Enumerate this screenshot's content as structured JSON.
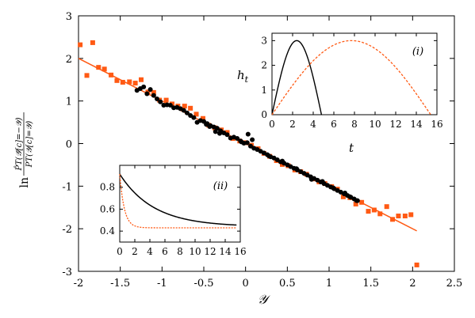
{
  "chart_data": [
    {
      "type": "scatter",
      "panel": "main",
      "xlabel": "𝒴",
      "ylabel_parts": {
        "prefix": "ln",
        "numerator": "P̂T(𝒴̂[c]=−𝒴)",
        "denominator": "PT(𝒴[c]=𝒴)"
      },
      "xlim": [
        -2,
        2.5
      ],
      "ylim": [
        -3,
        3
      ],
      "xticks": [
        "-2",
        "-1.5",
        "-1",
        "-0.5",
        "0",
        "0.5",
        "1",
        "1.5",
        "2",
        "2.5"
      ],
      "yticks": [
        "-3",
        "-2",
        "-1",
        "0",
        "1",
        "2",
        "3"
      ],
      "grid": false,
      "colors": {
        "orange": "#ff5a14",
        "black": "#000000"
      },
      "fit_line": {
        "x": [
          -2.0,
          2.05
        ],
        "y": [
          2.0,
          -2.05
        ]
      },
      "series": [
        {
          "marker": "square",
          "color": "#ff5a14",
          "points": [
            [
              -1.98,
              2.32
            ],
            [
              -1.9,
              1.6
            ],
            [
              -1.83,
              2.37
            ],
            [
              -1.76,
              1.79
            ],
            [
              -1.69,
              1.75
            ],
            [
              -1.61,
              1.61
            ],
            [
              -1.54,
              1.48
            ],
            [
              -1.47,
              1.44
            ],
            [
              -1.39,
              1.45
            ],
            [
              -1.32,
              1.42
            ],
            [
              -1.25,
              1.5
            ],
            [
              -1.17,
              1.21
            ],
            [
              -1.1,
              1.2
            ],
            [
              -1.03,
              1.02
            ],
            [
              -0.95,
              1.02
            ],
            [
              -0.88,
              0.93
            ],
            [
              -0.81,
              0.88
            ],
            [
              -0.73,
              0.88
            ],
            [
              -0.66,
              0.83
            ],
            [
              -0.59,
              0.69
            ],
            [
              -0.51,
              0.59
            ],
            [
              -0.44,
              0.43
            ],
            [
              -0.37,
              0.37
            ],
            [
              -0.29,
              0.32
            ],
            [
              -0.22,
              0.26
            ],
            [
              -0.15,
              0.12
            ],
            [
              -0.07,
              0.06
            ],
            [
              0.0,
              0.02
            ],
            [
              0.07,
              -0.04
            ],
            [
              0.15,
              -0.12
            ],
            [
              0.22,
              -0.23
            ],
            [
              0.29,
              -0.3
            ],
            [
              0.37,
              -0.4
            ],
            [
              0.44,
              -0.49
            ],
            [
              0.51,
              -0.52
            ],
            [
              0.59,
              -0.62
            ],
            [
              0.66,
              -0.66
            ],
            [
              0.73,
              -0.72
            ],
            [
              0.81,
              -0.83
            ],
            [
              0.88,
              -0.9
            ],
            [
              0.95,
              -0.94
            ],
            [
              1.03,
              -1.01
            ],
            [
              1.1,
              -1.07
            ],
            [
              1.17,
              -1.25
            ],
            [
              1.25,
              -1.27
            ],
            [
              1.32,
              -1.42
            ],
            [
              1.39,
              -1.38
            ],
            [
              1.47,
              -1.59
            ],
            [
              1.54,
              -1.56
            ],
            [
              1.61,
              -1.65
            ],
            [
              1.69,
              -1.48
            ],
            [
              1.76,
              -1.78
            ],
            [
              1.83,
              -1.7
            ],
            [
              1.91,
              -1.7
            ],
            [
              1.98,
              -1.67
            ],
            [
              2.05,
              -2.85
            ]
          ]
        },
        {
          "marker": "circle",
          "color": "#000000",
          "points": [
            [
              -1.3,
              1.25
            ],
            [
              -1.26,
              1.29
            ],
            [
              -1.22,
              1.33
            ],
            [
              -1.18,
              1.17
            ],
            [
              -1.14,
              1.27
            ],
            [
              -1.1,
              1.13
            ],
            [
              -1.06,
              1.05
            ],
            [
              -1.02,
              0.98
            ],
            [
              -0.98,
              0.9
            ],
            [
              -0.94,
              0.91
            ],
            [
              -0.9,
              0.9
            ],
            [
              -0.86,
              0.84
            ],
            [
              -0.82,
              0.85
            ],
            [
              -0.78,
              0.82
            ],
            [
              -0.74,
              0.78
            ],
            [
              -0.7,
              0.72
            ],
            [
              -0.66,
              0.66
            ],
            [
              -0.62,
              0.61
            ],
            [
              -0.58,
              0.5
            ],
            [
              -0.54,
              0.54
            ],
            [
              -0.5,
              0.52
            ],
            [
              -0.46,
              0.47
            ],
            [
              -0.42,
              0.42
            ],
            [
              -0.38,
              0.39
            ],
            [
              -0.34,
              0.36
            ],
            [
              -0.3,
              0.3
            ],
            [
              -0.26,
              0.25
            ],
            [
              -0.22,
              0.21
            ],
            [
              -0.18,
              0.13
            ],
            [
              -0.14,
              0.15
            ],
            [
              -0.1,
              0.12
            ],
            [
              -0.06,
              0.06
            ],
            [
              -0.02,
              0.01
            ],
            [
              0.02,
              0.02
            ],
            [
              0.06,
              -0.06
            ],
            [
              0.1,
              -0.11
            ],
            [
              0.14,
              -0.14
            ],
            [
              0.18,
              -0.18
            ],
            [
              0.22,
              -0.22
            ],
            [
              0.26,
              -0.26
            ],
            [
              0.3,
              -0.31
            ],
            [
              0.34,
              -0.34
            ],
            [
              0.38,
              -0.38
            ],
            [
              0.42,
              -0.43
            ],
            [
              0.46,
              -0.46
            ],
            [
              0.5,
              -0.5
            ],
            [
              0.54,
              -0.54
            ],
            [
              0.58,
              -0.58
            ],
            [
              0.62,
              -0.62
            ],
            [
              0.66,
              -0.66
            ],
            [
              0.7,
              -0.7
            ],
            [
              0.74,
              -0.74
            ],
            [
              0.78,
              -0.78
            ],
            [
              0.82,
              -0.82
            ],
            [
              0.86,
              -0.86
            ],
            [
              0.9,
              -0.9
            ],
            [
              0.94,
              -0.94
            ],
            [
              0.98,
              -0.98
            ],
            [
              1.02,
              -1.02
            ],
            [
              1.06,
              -1.06
            ],
            [
              1.1,
              -1.1
            ],
            [
              1.14,
              -1.14
            ],
            [
              1.18,
              -1.18
            ],
            [
              1.22,
              -1.22
            ],
            [
              1.26,
              -1.26
            ],
            [
              1.3,
              -1.3
            ],
            [
              1.34,
              -1.34
            ],
            [
              -0.47,
              0.45
            ],
            [
              -0.43,
              0.4
            ],
            [
              0.08,
              0.09
            ],
            [
              -0.36,
              0.28
            ],
            [
              -0.31,
              0.24
            ],
            [
              0.03,
              0.22
            ],
            [
              -0.05,
              0.04
            ],
            [
              0.28,
              -0.29
            ],
            [
              0.44,
              -0.41
            ],
            [
              0.61,
              -0.59
            ],
            [
              0.79,
              -0.84
            ],
            [
              0.92,
              -0.89
            ],
            [
              1.05,
              -1.04
            ],
            [
              1.19,
              -1.16
            ],
            [
              1.25,
              -1.25
            ],
            [
              1.33,
              -1.34
            ]
          ]
        }
      ]
    },
    {
      "type": "line",
      "panel": "inset-i",
      "panel_label": "(i)",
      "xlabel": "t",
      "ylabel": "h",
      "ylabel_sub": "t",
      "xlim": [
        0,
        16
      ],
      "ylim": [
        0,
        3.3
      ],
      "xticks": [
        "0",
        "2",
        "4",
        "6",
        "8",
        "10",
        "12",
        "14",
        "16"
      ],
      "yticks": [
        "0",
        "1",
        "2",
        "3"
      ],
      "series": [
        {
          "style": "solid",
          "color": "#000000",
          "formula": "3*sin(pi*t/4.8)",
          "domain": [
            0,
            4.8
          ]
        },
        {
          "style": "dashed",
          "color": "#ff5a14",
          "formula": "3*sin(pi*t/15.4)",
          "domain": [
            0,
            15.4
          ]
        }
      ]
    },
    {
      "type": "line",
      "panel": "inset-ii",
      "panel_label": "(ii)",
      "xlim": [
        0,
        16
      ],
      "ylim": [
        0.3,
        1.0
      ],
      "xticks": [
        "0",
        "2",
        "4",
        "6",
        "8",
        "10",
        "12",
        "14",
        "16"
      ],
      "yticks": [
        "0.4",
        "0.6",
        "0.8"
      ],
      "series": [
        {
          "style": "solid",
          "color": "#000000",
          "formula": "0.44+0.48*exp(-t/4.5)"
        },
        {
          "style": "dashed",
          "color": "#ff5a14",
          "formula": "0.43+0.49*exp(-t/0.6)"
        }
      ]
    }
  ]
}
